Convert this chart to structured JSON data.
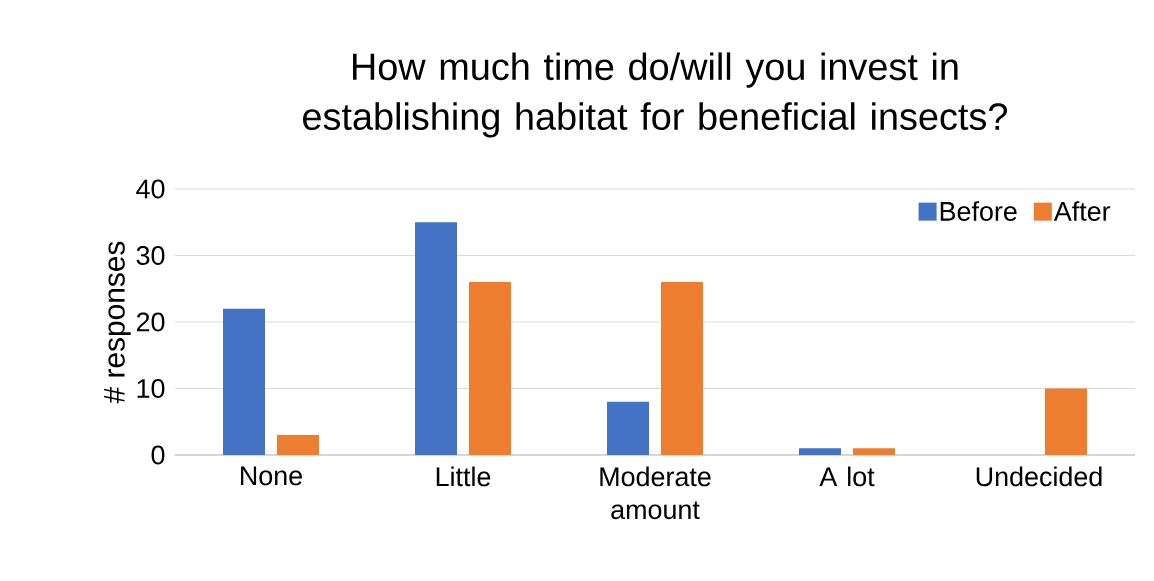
{
  "chart_data": {
    "type": "bar",
    "title": "How much time do/will you invest in establishing habitat for beneficial insects?",
    "ylabel": "# responses",
    "categories": [
      "None",
      "Little",
      "Moderate amount",
      "A lot",
      "Undecided"
    ],
    "series": [
      {
        "name": "Before",
        "color": "#4472c4",
        "values": [
          22,
          35,
          8,
          1,
          0
        ]
      },
      {
        "name": "After",
        "color": "#ed7d31",
        "values": [
          3,
          26,
          26,
          1,
          10
        ]
      }
    ],
    "ylim": [
      0,
      40
    ],
    "yticks": [
      0,
      10,
      20,
      30,
      40
    ],
    "grid": "y",
    "legend": "top right"
  }
}
